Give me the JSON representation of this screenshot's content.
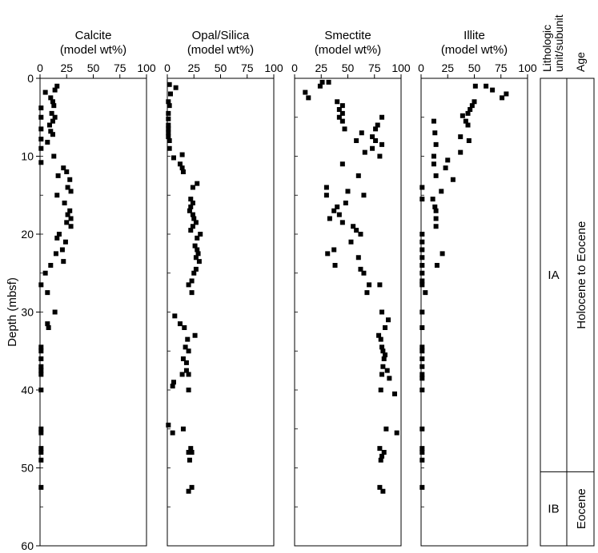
{
  "chart_data": {
    "type": "scatter",
    "ylabel": "Depth (mbsf)",
    "ylim": [
      60,
      0
    ],
    "y_ticks": [
      0,
      10,
      20,
      30,
      40,
      50,
      60
    ],
    "x_ticks": [
      0,
      25,
      50,
      75,
      100
    ],
    "xlim": [
      0,
      100
    ],
    "panels": [
      {
        "title": "Calcite",
        "subtitle": "(model wt%)",
        "points": [
          [
            16,
            1.0
          ],
          [
            14,
            1.5
          ],
          [
            5,
            1.8
          ],
          [
            10,
            2.5
          ],
          [
            12,
            3.0
          ],
          [
            13,
            3.5
          ],
          [
            1,
            3.8
          ],
          [
            11,
            4.5
          ],
          [
            1,
            5.0
          ],
          [
            14,
            5.0
          ],
          [
            12,
            5.5
          ],
          [
            9,
            6.0
          ],
          [
            1,
            6.5
          ],
          [
            10,
            6.8
          ],
          [
            12,
            7.2
          ],
          [
            1,
            7.8
          ],
          [
            7,
            8.2
          ],
          [
            1,
            9.0
          ],
          [
            13,
            10.0
          ],
          [
            1,
            10.8
          ],
          [
            22,
            11.5
          ],
          [
            25,
            12.0
          ],
          [
            17,
            12.5
          ],
          [
            28,
            13.0
          ],
          [
            26,
            14.0
          ],
          [
            29,
            14.5
          ],
          [
            16,
            15.0
          ],
          [
            23,
            16.0
          ],
          [
            28,
            17.0
          ],
          [
            26,
            17.5
          ],
          [
            29,
            18.0
          ],
          [
            25,
            18.5
          ],
          [
            29,
            19.0
          ],
          [
            18,
            20.0
          ],
          [
            16,
            20.5
          ],
          [
            24,
            21.0
          ],
          [
            21,
            22.0
          ],
          [
            15,
            22.5
          ],
          [
            22,
            23.5
          ],
          [
            10,
            24.0
          ],
          [
            5,
            25.0
          ],
          [
            1,
            26.5
          ],
          [
            7,
            27.5
          ],
          [
            14,
            30.0
          ],
          [
            7,
            31.5
          ],
          [
            8,
            32.0
          ],
          [
            1,
            34.5
          ],
          [
            1,
            35.0
          ],
          [
            1,
            36.0
          ],
          [
            1,
            37.0
          ],
          [
            1,
            37.5
          ],
          [
            1,
            38.0
          ],
          [
            1,
            40.0
          ],
          [
            1,
            45.0
          ],
          [
            1,
            45.5
          ],
          [
            1,
            47.5
          ],
          [
            1,
            48.0
          ],
          [
            1,
            49.0
          ],
          [
            1,
            52.5
          ]
        ]
      },
      {
        "title": "Opal/Silica",
        "subtitle": "(model wt%)",
        "points": [
          [
            2,
            0.8
          ],
          [
            8,
            1.2
          ],
          [
            3,
            2.0
          ],
          [
            1,
            3.0
          ],
          [
            2,
            3.5
          ],
          [
            1,
            4.5
          ],
          [
            1,
            5.2
          ],
          [
            1,
            6.0
          ],
          [
            1,
            6.5
          ],
          [
            1,
            7.0
          ],
          [
            1,
            7.5
          ],
          [
            2,
            8.0
          ],
          [
            2,
            9.0
          ],
          [
            14,
            9.8
          ],
          [
            6,
            10.2
          ],
          [
            12,
            11.0
          ],
          [
            14,
            11.5
          ],
          [
            15,
            12.0
          ],
          [
            28,
            13.5
          ],
          [
            24,
            14.0
          ],
          [
            22,
            15.5
          ],
          [
            24,
            16.0
          ],
          [
            22,
            16.5
          ],
          [
            21,
            17.0
          ],
          [
            24,
            17.5
          ],
          [
            25,
            18.0
          ],
          [
            27,
            18.5
          ],
          [
            24,
            19.0
          ],
          [
            22,
            19.5
          ],
          [
            31,
            20.0
          ],
          [
            28,
            20.5
          ],
          [
            26,
            21.5
          ],
          [
            28,
            22.0
          ],
          [
            29,
            22.5
          ],
          [
            27,
            23.0
          ],
          [
            30,
            23.5
          ],
          [
            27,
            24.5
          ],
          [
            25,
            25.0
          ],
          [
            23,
            26.0
          ],
          [
            20,
            26.5
          ],
          [
            23,
            27.5
          ],
          [
            7,
            30.5
          ],
          [
            12,
            31.5
          ],
          [
            16,
            32.0
          ],
          [
            26,
            33.0
          ],
          [
            19,
            33.5
          ],
          [
            17,
            34.5
          ],
          [
            20,
            35.0
          ],
          [
            15,
            36.0
          ],
          [
            18,
            36.5
          ],
          [
            18,
            37.5
          ],
          [
            14,
            38.0
          ],
          [
            20,
            38.0
          ],
          [
            6,
            39.0
          ],
          [
            5,
            39.5
          ],
          [
            20,
            40.0
          ],
          [
            1,
            44.5
          ],
          [
            15,
            45.0
          ],
          [
            5,
            45.5
          ],
          [
            22,
            47.5
          ],
          [
            20,
            48.0
          ],
          [
            23,
            48.0
          ],
          [
            21,
            49.0
          ],
          [
            23,
            52.5
          ],
          [
            20,
            53.0
          ]
        ]
      },
      {
        "title": "Smectite",
        "subtitle": "(model wt%)",
        "points": [
          [
            26,
            0.5
          ],
          [
            32,
            0.5
          ],
          [
            24,
            1.0
          ],
          [
            10,
            1.8
          ],
          [
            13,
            2.5
          ],
          [
            40,
            3.0
          ],
          [
            45,
            3.5
          ],
          [
            42,
            4.0
          ],
          [
            45,
            4.5
          ],
          [
            42,
            5.0
          ],
          [
            82,
            5.0
          ],
          [
            45,
            5.5
          ],
          [
            78,
            6.0
          ],
          [
            47,
            6.5
          ],
          [
            76,
            6.5
          ],
          [
            63,
            7.0
          ],
          [
            73,
            7.5
          ],
          [
            58,
            8.0
          ],
          [
            76,
            8.0
          ],
          [
            82,
            8.5
          ],
          [
            73,
            9.0
          ],
          [
            66,
            9.5
          ],
          [
            80,
            10.0
          ],
          [
            45,
            11.0
          ],
          [
            60,
            12.5
          ],
          [
            30,
            14.0
          ],
          [
            50,
            14.5
          ],
          [
            30,
            15.0
          ],
          [
            65,
            15.0
          ],
          [
            48,
            16.0
          ],
          [
            40,
            16.5
          ],
          [
            37,
            17.0
          ],
          [
            42,
            17.5
          ],
          [
            33,
            18.0
          ],
          [
            45,
            18.5
          ],
          [
            55,
            19.0
          ],
          [
            58,
            19.5
          ],
          [
            62,
            20.0
          ],
          [
            53,
            21.0
          ],
          [
            37,
            22.0
          ],
          [
            31,
            22.5
          ],
          [
            60,
            23.0
          ],
          [
            38,
            24.0
          ],
          [
            62,
            24.5
          ],
          [
            65,
            25.0
          ],
          [
            70,
            26.5
          ],
          [
            80,
            26.5
          ],
          [
            68,
            27.5
          ],
          [
            82,
            30.0
          ],
          [
            88,
            31.0
          ],
          [
            85,
            32.0
          ],
          [
            79,
            33.0
          ],
          [
            81,
            33.5
          ],
          [
            82,
            34.5
          ],
          [
            83,
            35.0
          ],
          [
            85,
            35.5
          ],
          [
            84,
            36.0
          ],
          [
            83,
            37.0
          ],
          [
            87,
            37.5
          ],
          [
            82,
            38.0
          ],
          [
            89,
            38.5
          ],
          [
            81,
            40.0
          ],
          [
            94,
            40.5
          ],
          [
            86,
            45.0
          ],
          [
            96,
            45.5
          ],
          [
            80,
            47.5
          ],
          [
            84,
            48.0
          ],
          [
            82,
            48.5
          ],
          [
            81,
            49.0
          ],
          [
            80,
            52.5
          ],
          [
            83,
            53.0
          ]
        ]
      },
      {
        "title": "Illite",
        "subtitle": "(model wt%)",
        "points": [
          [
            51,
            1.0
          ],
          [
            61,
            1.0
          ],
          [
            67,
            1.5
          ],
          [
            80,
            2.0
          ],
          [
            76,
            2.5
          ],
          [
            50,
            3.0
          ],
          [
            48,
            3.5
          ],
          [
            46,
            4.0
          ],
          [
            44,
            4.5
          ],
          [
            39,
            4.8
          ],
          [
            42,
            5.5
          ],
          [
            12,
            5.5
          ],
          [
            44,
            6.0
          ],
          [
            13,
            7.0
          ],
          [
            37,
            7.5
          ],
          [
            45,
            8.0
          ],
          [
            14,
            8.5
          ],
          [
            37,
            9.5
          ],
          [
            12,
            10.0
          ],
          [
            25,
            10.5
          ],
          [
            12,
            11.0
          ],
          [
            23,
            11.5
          ],
          [
            14,
            12.5
          ],
          [
            30,
            13.0
          ],
          [
            1,
            14.0
          ],
          [
            19,
            14.5
          ],
          [
            1,
            15.5
          ],
          [
            11,
            15.5
          ],
          [
            13,
            16.5
          ],
          [
            14,
            17.0
          ],
          [
            14,
            18.0
          ],
          [
            14,
            19.0
          ],
          [
            1,
            20.0
          ],
          [
            1,
            21.0
          ],
          [
            1,
            22.0
          ],
          [
            1,
            23.0
          ],
          [
            20,
            22.5
          ],
          [
            1,
            24.0
          ],
          [
            15,
            24.0
          ],
          [
            1,
            25.0
          ],
          [
            1,
            26.0
          ],
          [
            1,
            26.5
          ],
          [
            4,
            27.5
          ],
          [
            1,
            30.0
          ],
          [
            1,
            32.0
          ],
          [
            1,
            34.5
          ],
          [
            1,
            35.0
          ],
          [
            1,
            36.0
          ],
          [
            1,
            37.0
          ],
          [
            1,
            38.0
          ],
          [
            1,
            38.5
          ],
          [
            1,
            40.0
          ],
          [
            1,
            45.0
          ],
          [
            1,
            47.5
          ],
          [
            1,
            48.0
          ],
          [
            1,
            49.0
          ],
          [
            1,
            52.5
          ]
        ]
      }
    ],
    "strat": {
      "unit_header": [
        "Lithologic",
        "unit/subunit"
      ],
      "age_header": "Age",
      "boundary_depth": 50.5,
      "units": [
        {
          "label": "IA",
          "top": 0,
          "bottom": 50.5
        },
        {
          "label": "IB",
          "top": 50.5,
          "bottom": 60
        }
      ],
      "ages": [
        {
          "label": "Holocene to Eocene",
          "top": 0,
          "bottom": 50.5
        },
        {
          "label": "Eocene",
          "top": 50.5,
          "bottom": 60
        }
      ]
    }
  }
}
